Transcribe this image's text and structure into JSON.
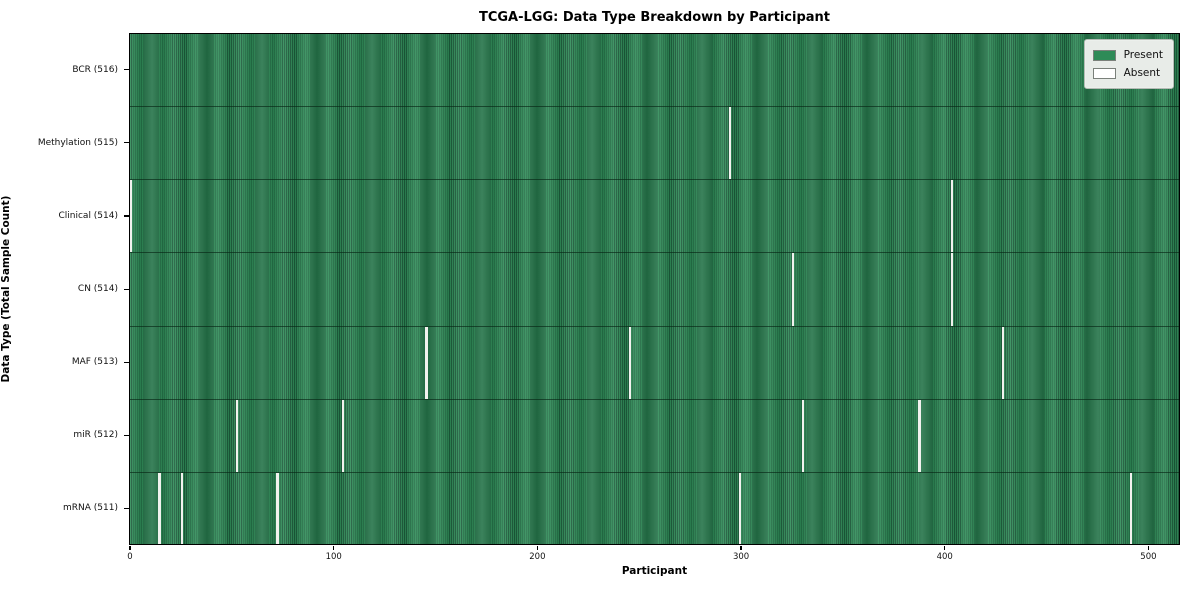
{
  "chart_data": {
    "type": "heatmap",
    "title": "TCGA-LGG: Data Type Breakdown by Participant",
    "xlabel": "Participant",
    "ylabel": "Data Type (Total Sample Count)",
    "n_participants": 516,
    "x_ticks": [
      0,
      100,
      200,
      300,
      400,
      500
    ],
    "grid": false,
    "legend_position": "upper right",
    "legend": [
      {
        "label": "Present",
        "color": "#2e8b57"
      },
      {
        "label": "Absent",
        "color": "#ffffff"
      }
    ],
    "colors": {
      "present": "#2e8b57",
      "present_edge": "#1c5e3c",
      "absent_line": "#f2f2ef",
      "legend_bg": "#e8ece8"
    },
    "rows": [
      {
        "label": "BCR (516)",
        "data_type": "BCR",
        "count": 516,
        "absent_participants": []
      },
      {
        "label": "Methylation (515)",
        "data_type": "Methylation",
        "count": 515,
        "absent_participants": [
          294
        ]
      },
      {
        "label": "Clinical (514)",
        "data_type": "Clinical",
        "count": 514,
        "absent_participants": [
          0,
          403
        ]
      },
      {
        "label": "CN (514)",
        "data_type": "CN",
        "count": 514,
        "absent_participants": [
          325,
          403
        ]
      },
      {
        "label": "MAF (513)",
        "data_type": "MAF",
        "count": 513,
        "absent_participants": [
          145,
          245,
          428
        ]
      },
      {
        "label": "miR (512)",
        "data_type": "miR",
        "count": 512,
        "absent_participants": [
          52,
          104,
          330,
          387
        ]
      },
      {
        "label": "mRNA (511)",
        "data_type": "mRNA",
        "count": 511,
        "absent_participants": [
          14,
          25,
          72,
          299,
          491
        ]
      }
    ]
  }
}
